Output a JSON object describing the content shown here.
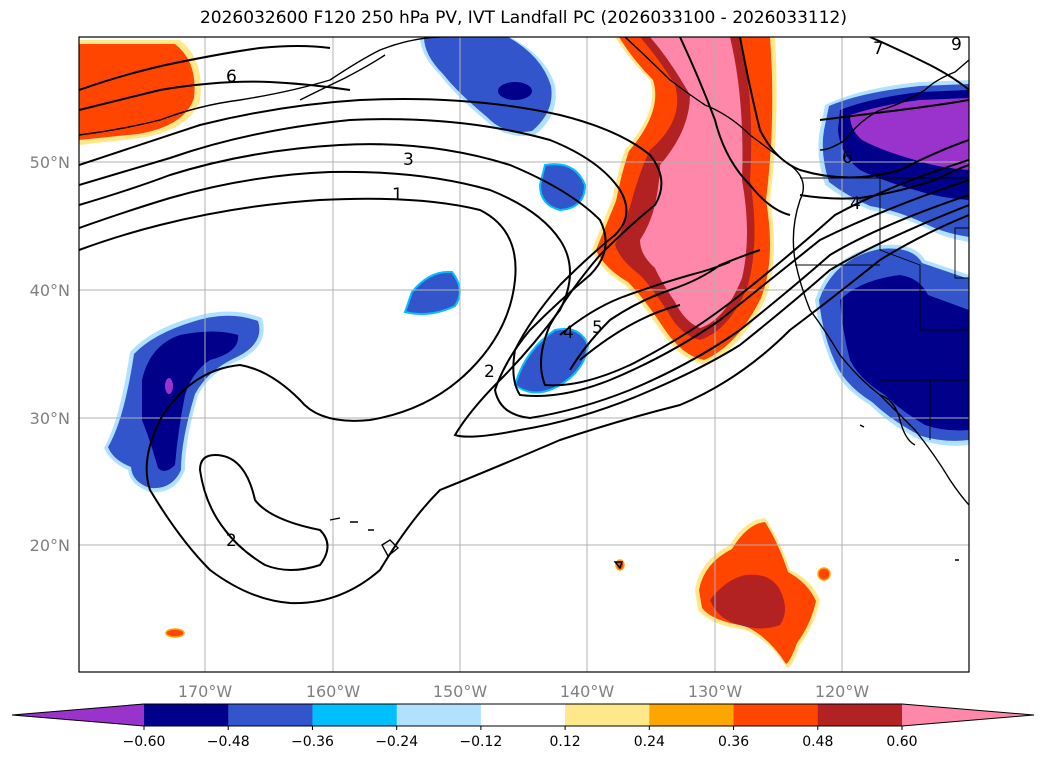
{
  "title": "2026032600 F120 250 hPa PV, IVT Landfall PC (2026033100 - 2026033112)",
  "longitude_labels": [
    "170°W",
    "160°W",
    "150°W",
    "140°W",
    "130°W",
    "120°W"
  ],
  "latitude_labels": [
    "50°N",
    "40°N",
    "30°N",
    "20°N"
  ],
  "colorbar": {
    "tick_labels": [
      "−0.60",
      "−0.48",
      "−0.36",
      "−0.24",
      "−0.12",
      "0.12",
      "0.24",
      "0.36",
      "0.48",
      "0.60"
    ],
    "colors": [
      "#9933cc",
      "#00008b",
      "#3355cc",
      "#00bfff",
      "#b0e2ff",
      "#ffffff",
      "#ffe88a",
      "#ffa500",
      "#ff4500",
      "#b22222",
      "#ff88aa"
    ]
  },
  "contour_labels": [
    "6",
    "3",
    "1",
    "2",
    "4",
    "5",
    "2",
    "6",
    "4",
    "7",
    "9"
  ],
  "colors": {
    "coast": "#000000",
    "grid": "#b0b0b0",
    "contour": "#000000"
  }
}
